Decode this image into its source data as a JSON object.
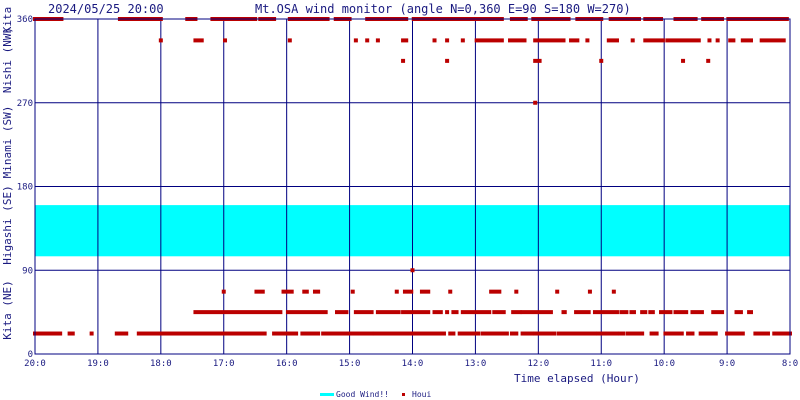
{
  "header": {
    "datetime": "2024/05/25 20:00",
    "title": "Mt.OSA wind monitor (angle N=0,360 E=90 S=180 W=270)"
  },
  "colors": {
    "axis": "#000080",
    "text": "#1a1a80",
    "good_band": "#00ffff",
    "houi": "#bb0000"
  },
  "chart_data": {
    "type": "scatter",
    "title": "Mt.OSA wind monitor (angle N=0,360 E=90 S=180 W=270)",
    "xlabel": "Time elapsed (Hour)",
    "x_ticks": [
      "20:0",
      "19:0",
      "18:0",
      "17:0",
      "16:0",
      "15:0",
      "14:0",
      "13:0",
      "12:0",
      "11:0",
      "10:0",
      "9:0",
      "8:0"
    ],
    "xlim": [
      20,
      8
    ],
    "ylim": [
      0,
      360
    ],
    "y_ticks": [
      "0",
      "90",
      "180",
      "270",
      "360"
    ],
    "y_direction_labels": [
      "Kita (NE)",
      "Higashi (SE)",
      "Minami (SW)",
      "Nishi (NW)",
      "Kita"
    ],
    "grid": true,
    "legend": {
      "position": "bottom-center",
      "entries": [
        "Good Wind!!",
        "Houi"
      ]
    },
    "good_wind_band": [
      105,
      160
    ],
    "series": [
      {
        "name": "Houi",
        "runs": [
          [
            360,
            20.0,
            19.58
          ],
          [
            360,
            18.65,
            18.0
          ],
          [
            360,
            17.58,
            17.45
          ],
          [
            360,
            17.18,
            16.5
          ],
          [
            360,
            16.42,
            16.2
          ],
          [
            360,
            15.95,
            15.35
          ],
          [
            360,
            15.22,
            15.0
          ],
          [
            360,
            14.72,
            14.1
          ],
          [
            360,
            13.98,
            12.58
          ],
          [
            360,
            12.42,
            12.2
          ],
          [
            360,
            12.08,
            11.52
          ],
          [
            360,
            11.38,
            11.0
          ],
          [
            360,
            10.85,
            10.4
          ],
          [
            360,
            10.3,
            10.05
          ],
          [
            360,
            9.82,
            9.5
          ],
          [
            360,
            9.38,
            9.08
          ],
          [
            360,
            8.98,
            8.05
          ],
          [
            337,
            18.0,
            18.0
          ],
          [
            337,
            17.45,
            17.35
          ],
          [
            337,
            16.98,
            16.98
          ],
          [
            337,
            15.95,
            15.95
          ],
          [
            337,
            14.9,
            14.9
          ],
          [
            337,
            14.72,
            14.72
          ],
          [
            337,
            14.55,
            14.55
          ],
          [
            337,
            14.15,
            14.1
          ],
          [
            337,
            13.65,
            13.65
          ],
          [
            337,
            13.45,
            13.45
          ],
          [
            337,
            13.2,
            13.2
          ],
          [
            337,
            12.98,
            12.58
          ],
          [
            337,
            12.45,
            12.22
          ],
          [
            337,
            12.05,
            11.6
          ],
          [
            337,
            11.48,
            11.38
          ],
          [
            337,
            11.22,
            11.22
          ],
          [
            337,
            10.88,
            10.75
          ],
          [
            337,
            10.5,
            10.5
          ],
          [
            337,
            10.3,
            10.02
          ],
          [
            337,
            9.95,
            9.45
          ],
          [
            337,
            9.28,
            9.28
          ],
          [
            337,
            9.15,
            9.15
          ],
          [
            337,
            8.95,
            8.9
          ],
          [
            337,
            8.75,
            8.62
          ],
          [
            337,
            8.45,
            8.1
          ],
          [
            315,
            14.15,
            14.15
          ],
          [
            315,
            13.45,
            13.45
          ],
          [
            315,
            12.05,
            11.98
          ],
          [
            315,
            11.0,
            11.0
          ],
          [
            315,
            9.7,
            9.7
          ],
          [
            315,
            9.3,
            9.3
          ],
          [
            270,
            12.05,
            12.05
          ],
          [
            90,
            14.0,
            14.0
          ],
          [
            67,
            17.0,
            17.0
          ],
          [
            67,
            16.48,
            16.38
          ],
          [
            67,
            16.05,
            15.92
          ],
          [
            67,
            15.72,
            15.68
          ],
          [
            67,
            15.55,
            15.5
          ],
          [
            67,
            14.95,
            14.95
          ],
          [
            67,
            14.25,
            14.25
          ],
          [
            67,
            14.12,
            14.02
          ],
          [
            67,
            13.85,
            13.75
          ],
          [
            67,
            13.4,
            13.4
          ],
          [
            67,
            12.75,
            12.62
          ],
          [
            67,
            12.35,
            12.35
          ],
          [
            67,
            11.7,
            11.7
          ],
          [
            67,
            11.18,
            11.18
          ],
          [
            67,
            10.8,
            10.8
          ],
          [
            45,
            17.45,
            16.1
          ],
          [
            45,
            15.98,
            15.38
          ],
          [
            45,
            15.2,
            15.05
          ],
          [
            45,
            14.9,
            14.65
          ],
          [
            45,
            14.55,
            14.22
          ],
          [
            45,
            14.15,
            13.75
          ],
          [
            45,
            13.65,
            13.55
          ],
          [
            45,
            13.45,
            13.45
          ],
          [
            45,
            13.35,
            13.3
          ],
          [
            45,
            13.2,
            12.78
          ],
          [
            45,
            12.7,
            12.55
          ],
          [
            45,
            12.4,
            12.3
          ],
          [
            45,
            12.25,
            11.8
          ],
          [
            45,
            11.6,
            11.58
          ],
          [
            45,
            11.4,
            11.2
          ],
          [
            45,
            11.1,
            10.75
          ],
          [
            45,
            10.68,
            10.6
          ],
          [
            45,
            10.52,
            10.48
          ],
          [
            45,
            10.35,
            10.3
          ],
          [
            45,
            10.22,
            10.18
          ],
          [
            45,
            10.05,
            9.9
          ],
          [
            45,
            9.82,
            9.65
          ],
          [
            45,
            9.55,
            9.4
          ],
          [
            45,
            9.22,
            9.08
          ],
          [
            45,
            8.85,
            8.78
          ],
          [
            45,
            8.65,
            8.62
          ],
          [
            22,
            20.0,
            19.6
          ],
          [
            22,
            19.45,
            19.4
          ],
          [
            22,
            19.1,
            19.1
          ],
          [
            22,
            18.7,
            18.55
          ],
          [
            22,
            18.35,
            16.35
          ],
          [
            22,
            16.2,
            15.85
          ],
          [
            22,
            15.75,
            15.5
          ],
          [
            22,
            15.42,
            14.65
          ],
          [
            22,
            14.6,
            14.0
          ],
          [
            22,
            13.95,
            13.5
          ],
          [
            22,
            13.4,
            13.35
          ],
          [
            22,
            13.25,
            12.95
          ],
          [
            22,
            12.88,
            12.5
          ],
          [
            22,
            12.42,
            12.35
          ],
          [
            22,
            12.25,
            12.1
          ],
          [
            22,
            12.05,
            11.75
          ],
          [
            22,
            11.68,
            11.1
          ],
          [
            22,
            11.05,
            10.95
          ],
          [
            22,
            10.9,
            10.75
          ],
          [
            22,
            10.7,
            10.65
          ],
          [
            22,
            10.58,
            10.35
          ],
          [
            22,
            10.2,
            10.12
          ],
          [
            22,
            9.98,
            9.72
          ],
          [
            22,
            9.62,
            9.55
          ],
          [
            22,
            9.42,
            9.18
          ],
          [
            22,
            9.0,
            8.75
          ],
          [
            22,
            8.55,
            8.35
          ],
          [
            22,
            8.25,
            8.0
          ]
        ]
      }
    ]
  }
}
